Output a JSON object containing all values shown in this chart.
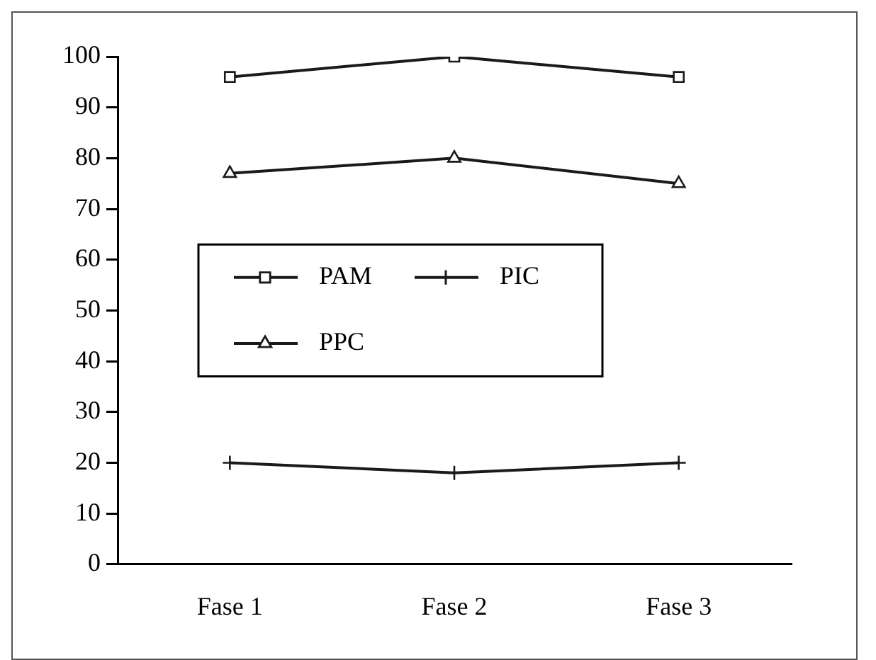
{
  "chart_data": {
    "type": "line",
    "categories": [
      "Fase 1",
      "Fase 2",
      "Fase 3"
    ],
    "series": [
      {
        "name": "PAM",
        "color": "#1a1a1a",
        "marker": "square",
        "values": [
          96,
          100,
          96
        ]
      },
      {
        "name": "PIC",
        "color": "#1a1a1a",
        "marker": "cross",
        "values": [
          20,
          18,
          20
        ]
      },
      {
        "name": "PPC",
        "color": "#1a1a1a",
        "marker": "triangle",
        "values": [
          77,
          80,
          75
        ]
      }
    ],
    "ylim": [
      0,
      100
    ],
    "yticks": [
      0,
      10,
      20,
      30,
      40,
      50,
      60,
      70,
      80,
      90,
      100
    ],
    "grid": false,
    "legend": "left",
    "line_style": "solid"
  }
}
